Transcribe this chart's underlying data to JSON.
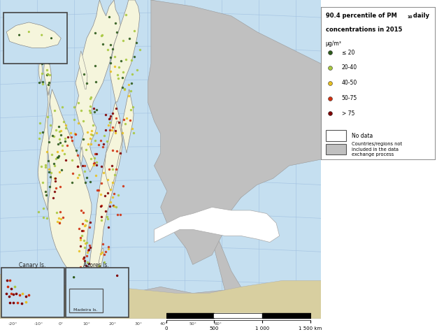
{
  "colors": {
    "le20": "#2d5a1b",
    "20to40": "#a8c840",
    "40to50": "#e8c020",
    "50to75": "#d03010",
    "gt75": "#800000",
    "ocean": "#c5dff0",
    "land_eu": "#f5f5dc",
    "land_grey": "#c0c0c0",
    "land_white": "#ffffff",
    "grid": "#a0c0e0",
    "border": "#888888"
  },
  "legend": {
    "title_line1": "90.4 percentile of PM",
    "title_sub": "10",
    "title_line2": " daily",
    "title_line3": "concentrations in 2015",
    "unit": "μg/m³",
    "items": [
      "≤ 20",
      "20-40",
      "40-50",
      "50-75",
      "> 75"
    ],
    "no_data": "No data",
    "excluded": "Countries/regions not\nincluded in the data\nexchange process"
  },
  "scale": [
    "0",
    "500",
    "1 000",
    "1 500 km"
  ],
  "inset_canary_label": "Canary Is.",
  "inset_azores_label": "Azores Is.",
  "inset_madeira_label": "Madeira Is."
}
